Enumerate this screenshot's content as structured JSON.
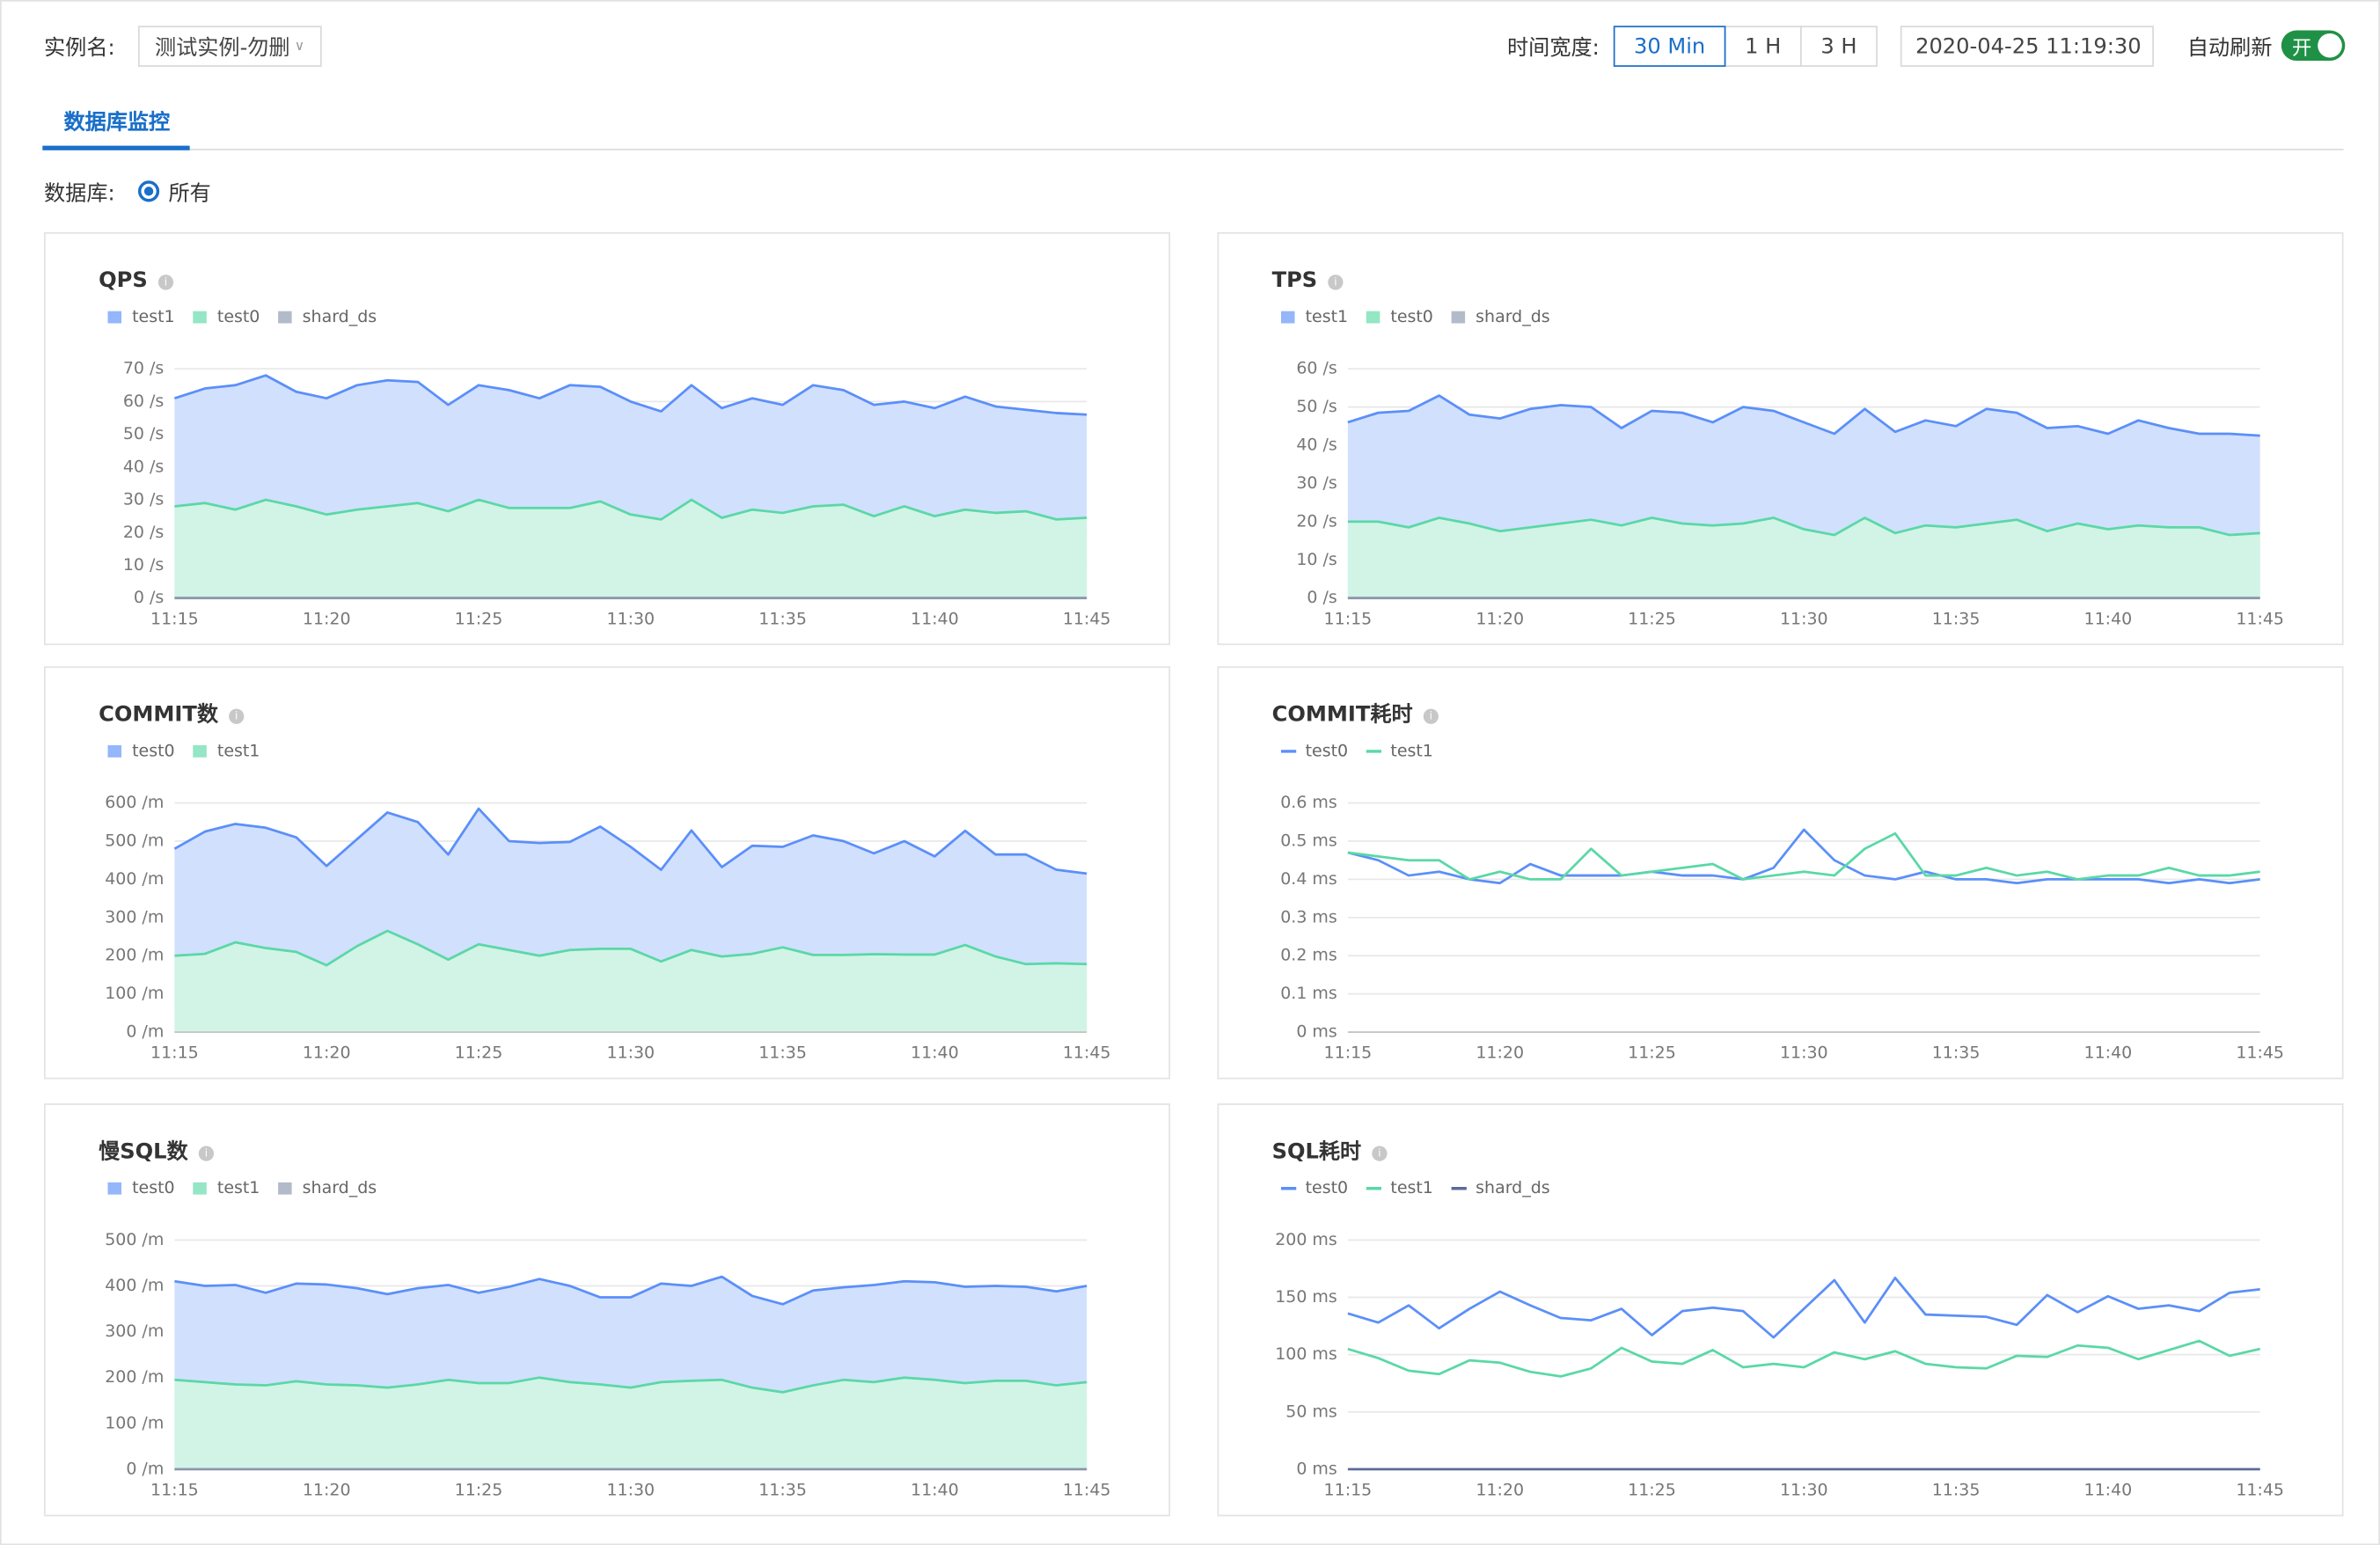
{
  "header": {
    "instance_label": "实例名:",
    "instance_value": "测试实例-勿删",
    "time_label": "时间宽度:",
    "time_options": [
      "30 Min",
      "1 H",
      "3 H"
    ],
    "datetime": "2020-04-25 11:19:30",
    "auto_refresh_label": "自动刷新",
    "switch_text": "开"
  },
  "tab": "数据库监控",
  "db_label": "数据库:",
  "db_option": "所有",
  "chart_data": [
    {
      "type": "area",
      "title": "QPS",
      "categories": [
        "11:15",
        null,
        null,
        null,
        null,
        "11:20",
        null,
        null,
        null,
        null,
        "11:25",
        null,
        null,
        null,
        null,
        "11:30",
        null,
        null,
        null,
        null,
        "11:35",
        null,
        null,
        null,
        null,
        "11:40",
        null,
        null,
        null,
        null,
        "11:45"
      ],
      "series": [
        {
          "name": "test1",
          "color": "#5b8ff9",
          "values": [
            61,
            64,
            65,
            68,
            63,
            61,
            65,
            66.5,
            66,
            59,
            65,
            63.5,
            61,
            65,
            64.5,
            60,
            57,
            65,
            58,
            61,
            59,
            65,
            63.5,
            59,
            60,
            58,
            61.5,
            58.5,
            57.5,
            56.5,
            56
          ]
        },
        {
          "name": "test0",
          "color": "#5ad8a6",
          "values": [
            28,
            29,
            27,
            30,
            28,
            25.5,
            27,
            28,
            29,
            26.5,
            30,
            27.5,
            27.5,
            27.5,
            29.5,
            25.5,
            24,
            30,
            24.5,
            27,
            26,
            28,
            28.5,
            25,
            28,
            25,
            27,
            26,
            26.5,
            24,
            24.5
          ]
        },
        {
          "name": "shard_ds",
          "color": "#8a96ad",
          "values": [
            0,
            0,
            0,
            0,
            0,
            0,
            0,
            0,
            0,
            0,
            0,
            0,
            0,
            0,
            0,
            0,
            0,
            0,
            0,
            0,
            0,
            0,
            0,
            0,
            0,
            0,
            0,
            0,
            0,
            0,
            0
          ]
        }
      ],
      "ylim": [
        0,
        70
      ],
      "yticks": [
        {
          "value": 0,
          "label": "0 /s"
        },
        {
          "value": 10,
          "label": "10 /s"
        },
        {
          "value": 20,
          "label": "20 /s"
        },
        {
          "value": 30,
          "label": "30 /s"
        },
        {
          "value": 40,
          "label": "40 /s"
        },
        {
          "value": 50,
          "label": "50 /s"
        },
        {
          "value": 60,
          "label": "60 /s"
        },
        {
          "value": 70,
          "label": "70 /s"
        }
      ],
      "grid": true
    },
    {
      "type": "area",
      "title": "TPS",
      "categories": [
        "11:15",
        null,
        null,
        null,
        null,
        "11:20",
        null,
        null,
        null,
        null,
        "11:25",
        null,
        null,
        null,
        null,
        "11:30",
        null,
        null,
        null,
        null,
        "11:35",
        null,
        null,
        null,
        null,
        "11:40",
        null,
        null,
        null,
        null,
        "11:45"
      ],
      "series": [
        {
          "name": "test1",
          "color": "#5b8ff9",
          "values": [
            46,
            48.5,
            49,
            53,
            48,
            47,
            49.5,
            50.5,
            50,
            44.5,
            49,
            48.5,
            46,
            50,
            49,
            46,
            43,
            49.5,
            43.5,
            46.5,
            45,
            49.5,
            48.5,
            44.5,
            45,
            43,
            46.5,
            44.5,
            43,
            43,
            42.5
          ]
        },
        {
          "name": "test0",
          "color": "#5ad8a6",
          "values": [
            20,
            20,
            18.5,
            21,
            19.5,
            17.5,
            18.5,
            19.5,
            20.5,
            19,
            21,
            19.5,
            19,
            19.5,
            21,
            18,
            16.5,
            21,
            17,
            19,
            18.5,
            19.5,
            20.5,
            17.5,
            19.5,
            18,
            19,
            18.5,
            18.5,
            16.5,
            17
          ]
        },
        {
          "name": "shard_ds",
          "color": "#8a96ad",
          "values": [
            0,
            0,
            0,
            0,
            0,
            0,
            0,
            0,
            0,
            0,
            0,
            0,
            0,
            0,
            0,
            0,
            0,
            0,
            0,
            0,
            0,
            0,
            0,
            0,
            0,
            0,
            0,
            0,
            0,
            0,
            0
          ]
        }
      ],
      "ylim": [
        0,
        60
      ],
      "yticks": [
        {
          "value": 0,
          "label": "0 /s"
        },
        {
          "value": 10,
          "label": "10 /s"
        },
        {
          "value": 20,
          "label": "20 /s"
        },
        {
          "value": 30,
          "label": "30 /s"
        },
        {
          "value": 40,
          "label": "40 /s"
        },
        {
          "value": 50,
          "label": "50 /s"
        },
        {
          "value": 60,
          "label": "60 /s"
        }
      ],
      "grid": true
    },
    {
      "type": "area",
      "title": "COMMIT数",
      "categories": [
        "11:15",
        null,
        null,
        null,
        null,
        "11:20",
        null,
        null,
        null,
        null,
        "11:25",
        null,
        null,
        null,
        null,
        "11:30",
        null,
        null,
        null,
        null,
        "11:35",
        null,
        null,
        null,
        null,
        "11:40",
        null,
        null,
        null,
        null,
        "11:45"
      ],
      "series": [
        {
          "name": "test0",
          "color": "#5b8ff9",
          "values": [
            480,
            525,
            545,
            535,
            510,
            435,
            505,
            575,
            550,
            465,
            585,
            500,
            495,
            498,
            538,
            485,
            425,
            528,
            432,
            488,
            485,
            515,
            500,
            468,
            500,
            460,
            527,
            465,
            465,
            425,
            415
          ]
        },
        {
          "name": "test1",
          "color": "#5ad8a6",
          "values": [
            200,
            205,
            235,
            220,
            210,
            175,
            225,
            265,
            230,
            190,
            230,
            215,
            200,
            215,
            218,
            218,
            185,
            215,
            198,
            205,
            222,
            202,
            202,
            204,
            203,
            203,
            228,
            198,
            178,
            180,
            178
          ]
        }
      ],
      "ylim": [
        0,
        600
      ],
      "yticks": [
        {
          "value": 0,
          "label": "0 /m"
        },
        {
          "value": 100,
          "label": "100 /m"
        },
        {
          "value": 200,
          "label": "200 /m"
        },
        {
          "value": 300,
          "label": "300 /m"
        },
        {
          "value": 400,
          "label": "400 /m"
        },
        {
          "value": 500,
          "label": "500 /m"
        },
        {
          "value": 600,
          "label": "600 /m"
        }
      ],
      "grid": true
    },
    {
      "type": "line",
      "title": "COMMIT耗时",
      "categories": [
        "11:15",
        null,
        null,
        null,
        null,
        "11:20",
        null,
        null,
        null,
        null,
        "11:25",
        null,
        null,
        null,
        null,
        "11:30",
        null,
        null,
        null,
        null,
        "11:35",
        null,
        null,
        null,
        null,
        "11:40",
        null,
        null,
        null,
        null,
        "11:45"
      ],
      "series": [
        {
          "name": "test0",
          "color": "#5b8ff9",
          "values": [
            0.47,
            0.45,
            0.41,
            0.42,
            0.4,
            0.39,
            0.44,
            0.41,
            0.41,
            0.41,
            0.42,
            0.41,
            0.41,
            0.4,
            0.43,
            0.53,
            0.45,
            0.41,
            0.4,
            0.42,
            0.4,
            0.4,
            0.39,
            0.4,
            0.4,
            0.4,
            0.4,
            0.39,
            0.4,
            0.39,
            0.4
          ]
        },
        {
          "name": "test1",
          "color": "#5ad8a6",
          "values": [
            0.47,
            0.46,
            0.45,
            0.45,
            0.4,
            0.42,
            0.4,
            0.4,
            0.48,
            0.41,
            0.42,
            0.43,
            0.44,
            0.4,
            0.41,
            0.42,
            0.41,
            0.48,
            0.52,
            0.41,
            0.41,
            0.43,
            0.41,
            0.42,
            0.4,
            0.41,
            0.41,
            0.43,
            0.41,
            0.41,
            0.42
          ]
        }
      ],
      "ylim": [
        0,
        0.6
      ],
      "yticks": [
        {
          "value": 0,
          "label": "0 ms"
        },
        {
          "value": 0.1,
          "label": "0.1 ms"
        },
        {
          "value": 0.2,
          "label": "0.2 ms"
        },
        {
          "value": 0.3,
          "label": "0.3 ms"
        },
        {
          "value": 0.4,
          "label": "0.4 ms"
        },
        {
          "value": 0.5,
          "label": "0.5 ms"
        },
        {
          "value": 0.6,
          "label": "0.6 ms"
        }
      ],
      "grid": true
    },
    {
      "type": "area",
      "title": "慢SQL数",
      "categories": [
        "11:15",
        null,
        null,
        null,
        null,
        "11:20",
        null,
        null,
        null,
        null,
        "11:25",
        null,
        null,
        null,
        null,
        "11:30",
        null,
        null,
        null,
        null,
        "11:35",
        null,
        null,
        null,
        null,
        "11:40",
        null,
        null,
        null,
        null,
        "11:45"
      ],
      "series": [
        {
          "name": "test0",
          "color": "#5b8ff9",
          "values": [
            410,
            400,
            402,
            385,
            405,
            403,
            395,
            382,
            395,
            402,
            385,
            398,
            415,
            400,
            375,
            375,
            405,
            400,
            420,
            378,
            360,
            390,
            397,
            402,
            410,
            408,
            398,
            400,
            398,
            388,
            400
          ]
        },
        {
          "name": "test1",
          "color": "#5ad8a6",
          "values": [
            195,
            190,
            185,
            183,
            192,
            185,
            183,
            178,
            185,
            195,
            188,
            188,
            200,
            190,
            185,
            178,
            190,
            193,
            195,
            178,
            168,
            183,
            195,
            190,
            200,
            195,
            188,
            193,
            193,
            183,
            190
          ]
        },
        {
          "name": "shard_ds",
          "color": "#8a96ad",
          "values": [
            0,
            0,
            0,
            0,
            0,
            0,
            0,
            0,
            0,
            0,
            0,
            0,
            0,
            0,
            0,
            0,
            0,
            0,
            0,
            0,
            0,
            0,
            0,
            0,
            0,
            0,
            0,
            0,
            0,
            0,
            0
          ]
        }
      ],
      "ylim": [
        0,
        500
      ],
      "yticks": [
        {
          "value": 0,
          "label": "0 /m"
        },
        {
          "value": 100,
          "label": "100 /m"
        },
        {
          "value": 200,
          "label": "200 /m"
        },
        {
          "value": 300,
          "label": "300 /m"
        },
        {
          "value": 400,
          "label": "400 /m"
        },
        {
          "value": 500,
          "label": "500 /m"
        }
      ],
      "grid": true
    },
    {
      "type": "line",
      "title": "SQL耗时",
      "categories": [
        "11:15",
        null,
        null,
        null,
        null,
        "11:20",
        null,
        null,
        null,
        null,
        "11:25",
        null,
        null,
        null,
        null,
        "11:30",
        null,
        null,
        null,
        null,
        "11:35",
        null,
        null,
        null,
        null,
        "11:40",
        null,
        null,
        null,
        null,
        "11:45"
      ],
      "series": [
        {
          "name": "test0",
          "color": "#5b8ff9",
          "values": [
            136,
            128,
            143,
            123,
            140,
            155,
            143,
            132,
            130,
            140,
            117,
            138,
            141,
            138,
            115,
            140,
            165,
            128,
            167,
            135,
            134,
            133,
            126,
            152,
            137,
            151,
            140,
            143,
            138,
            154,
            157
          ]
        },
        {
          "name": "test1",
          "color": "#5ad8a6",
          "values": [
            105,
            97,
            86,
            83,
            95,
            93,
            85,
            81,
            88,
            106,
            94,
            92,
            104,
            89,
            92,
            89,
            102,
            96,
            103,
            92,
            89,
            88,
            99,
            98,
            108,
            106,
            96,
            104,
            112,
            99,
            105
          ]
        },
        {
          "name": "shard_ds",
          "color": "#5d6b98",
          "values": [
            0,
            0,
            0,
            0,
            0,
            0,
            0,
            0,
            0,
            0,
            0,
            0,
            0,
            0,
            0,
            0,
            0,
            0,
            0,
            0,
            0,
            0,
            0,
            0,
            0,
            0,
            0,
            0,
            0,
            0,
            0
          ]
        }
      ],
      "ylim": [
        0,
        200
      ],
      "yticks": [
        {
          "value": 0,
          "label": "0 ms"
        },
        {
          "value": 50,
          "label": "50 ms"
        },
        {
          "value": 100,
          "label": "100 ms"
        },
        {
          "value": 150,
          "label": "150 ms"
        },
        {
          "value": 200,
          "label": "200 ms"
        }
      ],
      "grid": true
    }
  ]
}
